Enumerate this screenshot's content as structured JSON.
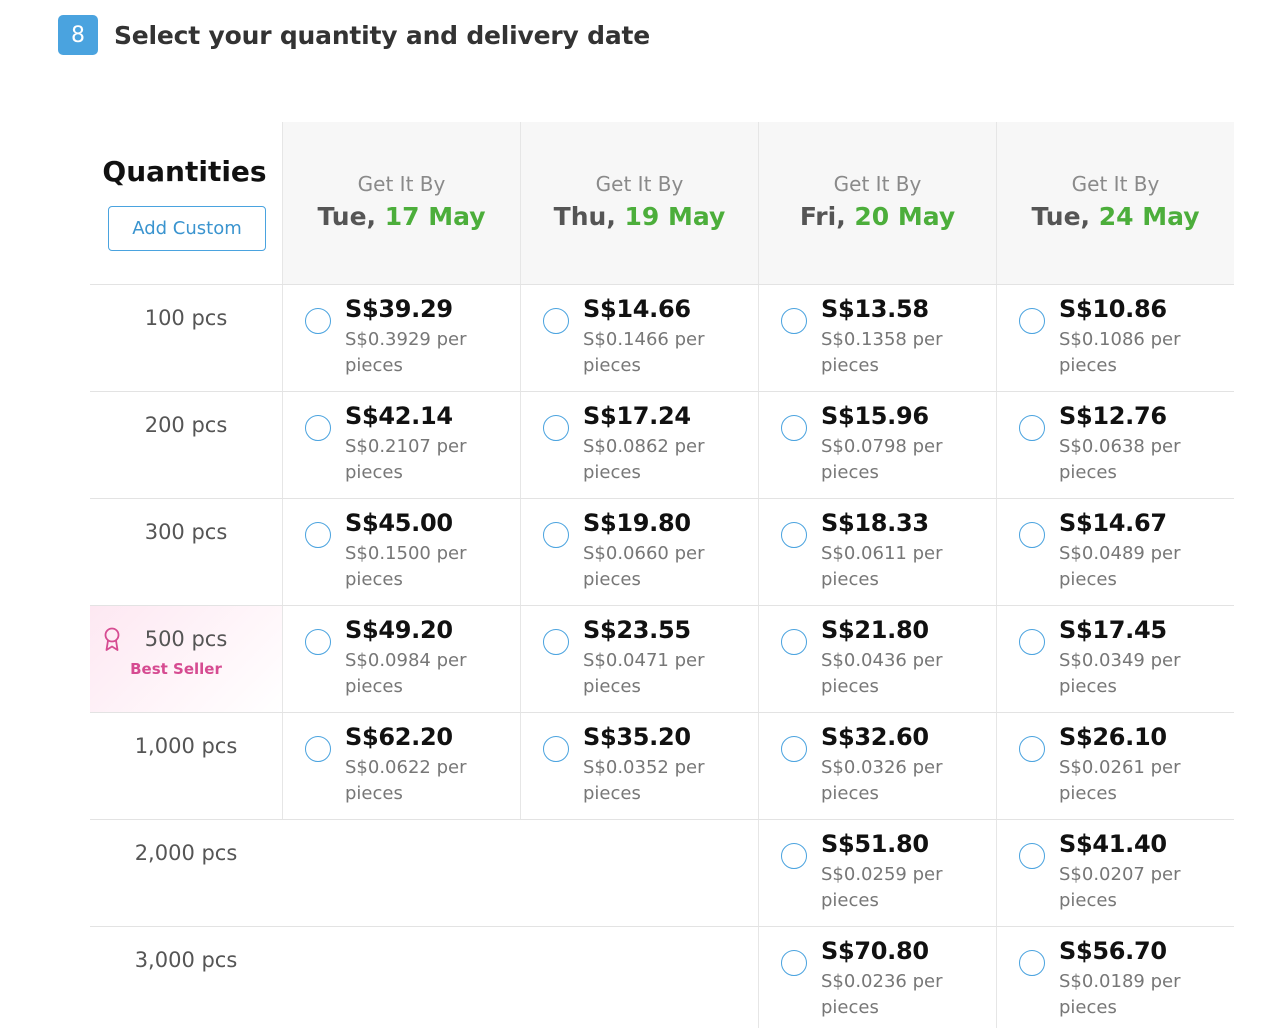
{
  "step": {
    "number": "8",
    "title": "Select your quantity and delivery date"
  },
  "quantities_header": {
    "title": "Quantities",
    "add_custom_label": "Add Custom"
  },
  "columns": [
    {
      "label": "Get It By",
      "day": "Tue, ",
      "date": "17 May"
    },
    {
      "label": "Get It By",
      "day": "Thu, ",
      "date": "19 May"
    },
    {
      "label": "Get It By",
      "day": "Fri, ",
      "date": "20 May"
    },
    {
      "label": "Get It By",
      "day": "Tue, ",
      "date": "24 May"
    }
  ],
  "best_seller_label": "Best Seller",
  "rows": [
    {
      "qty": "100 pcs",
      "cells": [
        {
          "price": "S$39.29",
          "per": "S$0.3929 per pieces"
        },
        {
          "price": "S$14.66",
          "per": "S$0.1466 per pieces"
        },
        {
          "price": "S$13.58",
          "per": "S$0.1358 per pieces"
        },
        {
          "price": "S$10.86",
          "per": "S$0.1086 per pieces"
        }
      ]
    },
    {
      "qty": "200 pcs",
      "cells": [
        {
          "price": "S$42.14",
          "per": "S$0.2107 per pieces"
        },
        {
          "price": "S$17.24",
          "per": "S$0.0862 per pieces"
        },
        {
          "price": "S$15.96",
          "per": "S$0.0798 per pieces"
        },
        {
          "price": "S$12.76",
          "per": "S$0.0638 per pieces"
        }
      ]
    },
    {
      "qty": "300 pcs",
      "cells": [
        {
          "price": "S$45.00",
          "per": "S$0.1500 per pieces"
        },
        {
          "price": "S$19.80",
          "per": "S$0.0660 per pieces"
        },
        {
          "price": "S$18.33",
          "per": "S$0.0611 per pieces"
        },
        {
          "price": "S$14.67",
          "per": "S$0.0489 per pieces"
        }
      ]
    },
    {
      "qty": "500 pcs",
      "best_seller": true,
      "cells": [
        {
          "price": "S$49.20",
          "per": "S$0.0984 per pieces"
        },
        {
          "price": "S$23.55",
          "per": "S$0.0471 per pieces"
        },
        {
          "price": "S$21.80",
          "per": "S$0.0436 per pieces"
        },
        {
          "price": "S$17.45",
          "per": "S$0.0349 per pieces"
        }
      ]
    },
    {
      "qty": "1,000 pcs",
      "cells": [
        {
          "price": "S$62.20",
          "per": "S$0.0622 per pieces"
        },
        {
          "price": "S$35.20",
          "per": "S$0.0352 per pieces"
        },
        {
          "price": "S$32.60",
          "per": "S$0.0326 per pieces"
        },
        {
          "price": "S$26.10",
          "per": "S$0.0261 per pieces"
        }
      ]
    },
    {
      "qty": "2,000 pcs",
      "cells": [
        null,
        null,
        {
          "price": "S$51.80",
          "per": "S$0.0259 per pieces"
        },
        {
          "price": "S$41.40",
          "per": "S$0.0207 per pieces"
        }
      ]
    },
    {
      "qty": "3,000 pcs",
      "cells": [
        null,
        null,
        {
          "price": "S$70.80",
          "per": "S$0.0236 per pieces"
        },
        {
          "price": "S$56.70",
          "per": "S$0.0189 per pieces"
        }
      ]
    }
  ],
  "colors": {
    "accent": "#4aa3df",
    "date_green": "#4cae3b",
    "best_seller": "#d64b91"
  }
}
